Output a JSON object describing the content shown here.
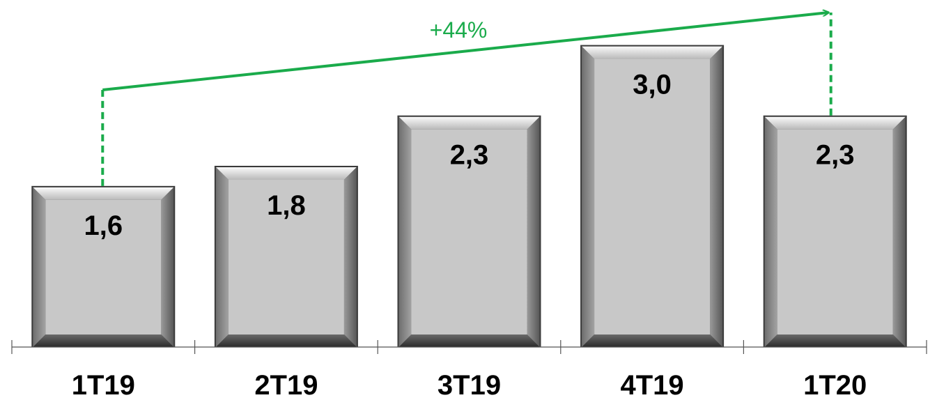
{
  "chart_data": {
    "type": "bar",
    "categories": [
      "1T19",
      "2T19",
      "3T19",
      "4T19",
      "1T20"
    ],
    "values": [
      1.6,
      1.8,
      2.3,
      3.0,
      2.3
    ],
    "value_labels": [
      "1,6",
      "1,8",
      "2,3",
      "3,0",
      "2,3"
    ],
    "title": "",
    "xlabel": "",
    "ylabel": "",
    "ylim": [
      0,
      3.35
    ],
    "grid": false,
    "bar_color": "#c8c8c8",
    "annotation": {
      "text": "+44%",
      "from_category": "1T19",
      "to_category": "1T20",
      "color": "#1aab4b"
    }
  }
}
